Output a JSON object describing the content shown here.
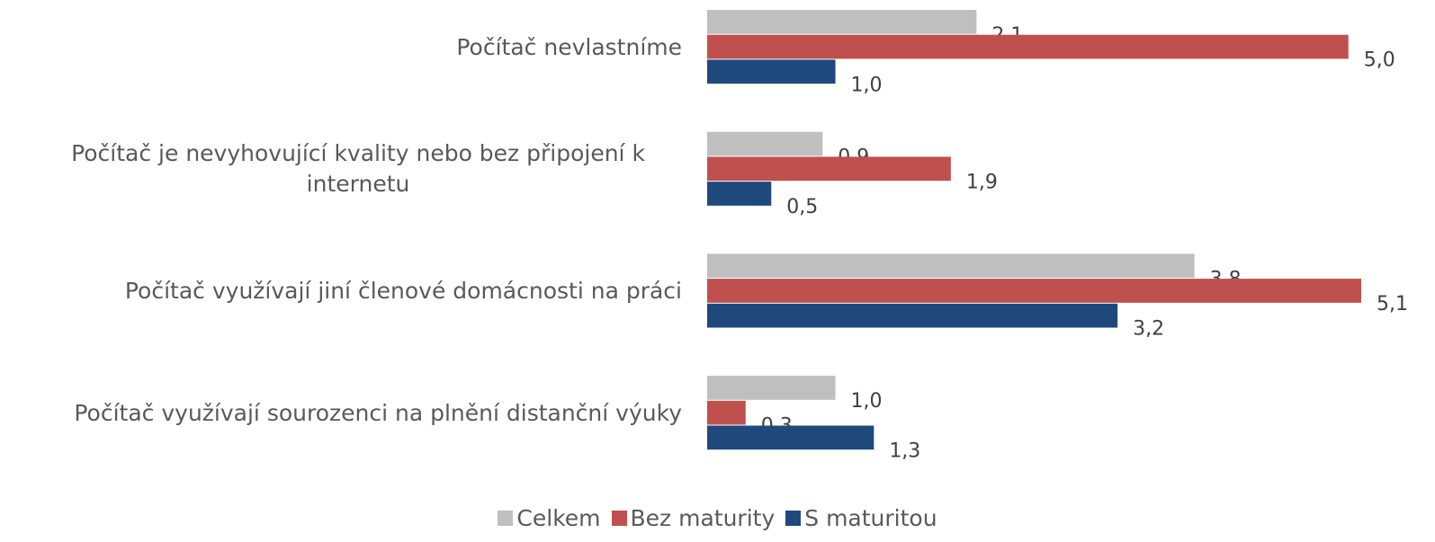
{
  "chart_data": {
    "type": "bar",
    "orientation": "horizontal",
    "categories": [
      "Počítač nevlastníme",
      "Počítač je nevyhovující kvality nebo bez připojení k internetu",
      "Počítač využívají jiní členové domácnosti na práci",
      "Počítač využívají sourozenci na plnění distanční výuky"
    ],
    "series": [
      {
        "name": "Celkem",
        "color": "#bfbfbf",
        "values": [
          2.1,
          0.9,
          3.8,
          1.0
        ],
        "value_labels": [
          "2,1",
          "0,9",
          "3,8",
          "1,0"
        ]
      },
      {
        "name": "Bez maturity",
        "color": "#c0504d",
        "values": [
          5.0,
          1.9,
          5.1,
          0.3
        ],
        "value_labels": [
          "5,0",
          "1,9",
          "5,1",
          "0,3"
        ]
      },
      {
        "name": "S maturitou",
        "color": "#1f497d",
        "values": [
          1.0,
          0.5,
          3.2,
          1.3
        ],
        "value_labels": [
          "1,0",
          "0,5",
          "3,2",
          "1,3"
        ]
      }
    ],
    "xlim": [
      0,
      5.1
    ],
    "legend": "bottom"
  }
}
